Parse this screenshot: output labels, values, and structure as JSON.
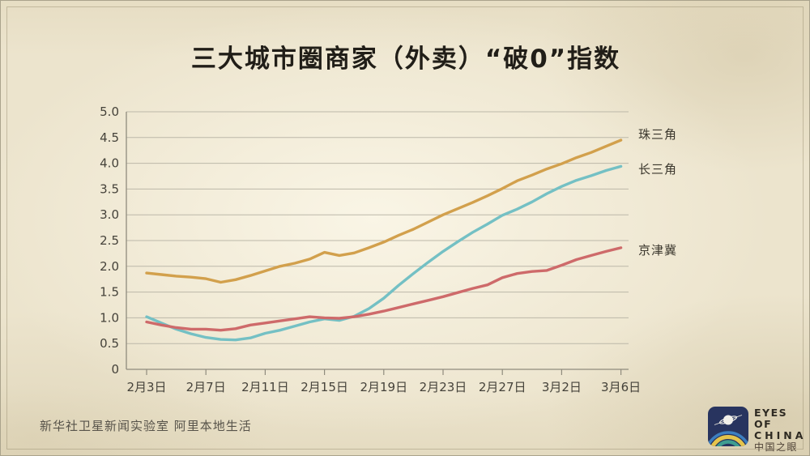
{
  "title": "三大城市圈商家（外卖）“破0”指数",
  "footer": {
    "credit": "新华社卫星新闻实验室  阿里本地生活"
  },
  "logo": {
    "line1": "EYES OF",
    "line2": "CHINA",
    "line3": "中国之眼",
    "icon": "satellite-over-earth-arcs"
  },
  "colors": {
    "background": "#ece4cd",
    "grid": "#bcb8a9",
    "axis": "#8f8b7d",
    "title_text": "#211e18",
    "tick_text": "#45423a",
    "footer_text": "#57534a",
    "logo_navy": "#28345f",
    "logo_arc_blue": "#3d7fc0",
    "logo_arc_yellow": "#e5c44c",
    "logo_arc_teal": "#3f9d90"
  },
  "chart_data": {
    "type": "line",
    "x": [
      "2月3日",
      "2月4日",
      "2月5日",
      "2月6日",
      "2月7日",
      "2月8日",
      "2月9日",
      "2月10日",
      "2月11日",
      "2月12日",
      "2月13日",
      "2月14日",
      "2月15日",
      "2月16日",
      "2月17日",
      "2月18日",
      "2月19日",
      "2月20日",
      "2月21日",
      "2月22日",
      "2月23日",
      "2月24日",
      "2月25日",
      "2月26日",
      "2月27日",
      "2月28日",
      "2月29日",
      "3月1日",
      "3月2日",
      "3月3日",
      "3月4日",
      "3月5日",
      "3月6日"
    ],
    "xtick_labels": [
      "2月3日",
      "2月7日",
      "2月11日",
      "2月15日",
      "2月19日",
      "2月23日",
      "2月27日",
      "3月2日",
      "3月6日"
    ],
    "xtick_every": 4,
    "ylim": [
      0,
      5
    ],
    "ytick_step": 0.5,
    "grid": true,
    "legend_position": "right-of-line-ends",
    "series": [
      {
        "name": "珠三角",
        "color": "#d2a04c",
        "values": [
          1.87,
          1.84,
          1.81,
          1.79,
          1.76,
          1.69,
          1.74,
          1.82,
          1.91,
          2.0,
          2.06,
          2.14,
          2.27,
          2.21,
          2.26,
          2.36,
          2.47,
          2.6,
          2.72,
          2.86,
          3.0,
          3.12,
          3.24,
          3.37,
          3.51,
          3.66,
          3.77,
          3.89,
          3.99,
          4.11,
          4.21,
          4.33,
          4.45
        ]
      },
      {
        "name": "长三角",
        "color": "#74c0c4",
        "values": [
          1.02,
          0.9,
          0.78,
          0.69,
          0.62,
          0.58,
          0.57,
          0.61,
          0.7,
          0.76,
          0.84,
          0.92,
          0.98,
          0.95,
          1.03,
          1.18,
          1.38,
          1.63,
          1.86,
          2.08,
          2.29,
          2.48,
          2.66,
          2.82,
          2.99,
          3.11,
          3.25,
          3.41,
          3.55,
          3.67,
          3.76,
          3.86,
          3.94
        ]
      },
      {
        "name": "京津冀",
        "color": "#ce6a6a",
        "values": [
          0.92,
          0.86,
          0.81,
          0.78,
          0.78,
          0.76,
          0.79,
          0.86,
          0.9,
          0.94,
          0.98,
          1.02,
          1.0,
          0.99,
          1.02,
          1.07,
          1.13,
          1.2,
          1.27,
          1.34,
          1.41,
          1.49,
          1.57,
          1.64,
          1.78,
          1.86,
          1.9,
          1.92,
          2.02,
          2.13,
          2.21,
          2.29,
          2.36
        ]
      }
    ]
  }
}
